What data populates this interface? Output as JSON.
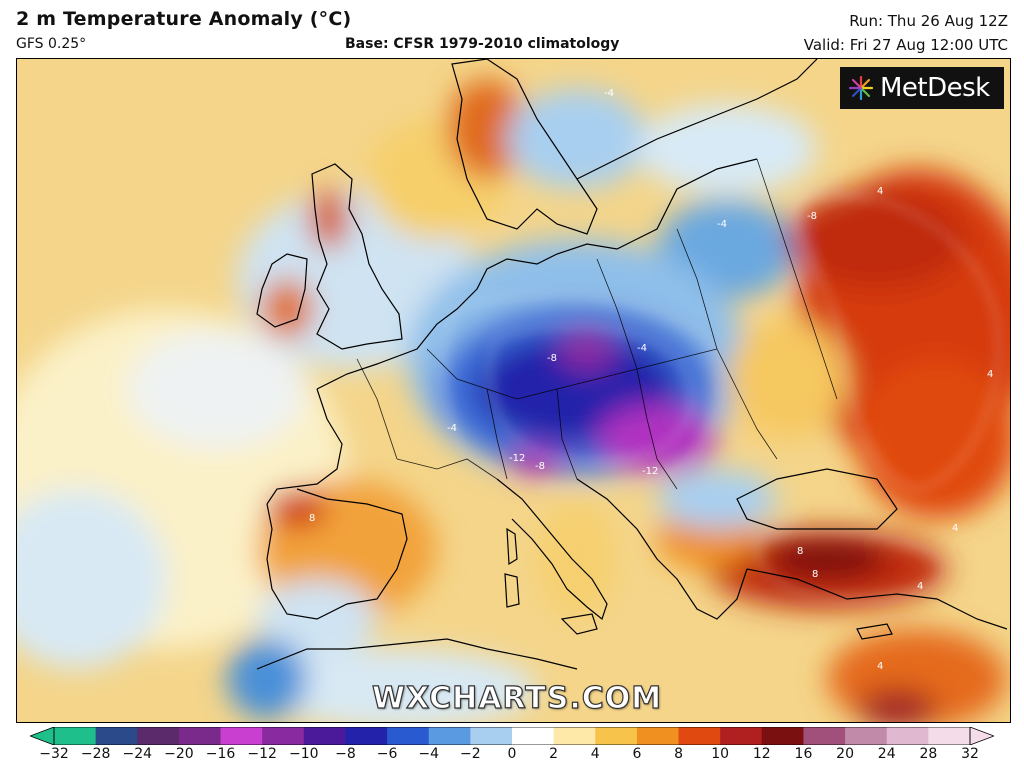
{
  "header": {
    "title": "2 m Temperature Anomaly (°C)",
    "model": "GFS 0.25°",
    "base": "Base: CFSR 1979-2010 climatology",
    "run": "Run: Thu 26 Aug 12Z",
    "valid": "Valid: Fri 27 Aug 12:00 UTC"
  },
  "logo": {
    "text": "MetDesk"
  },
  "watermark": "WXCHARTS.COM",
  "colorbar": {
    "ticks": [
      "−32",
      "−28",
      "−24",
      "−20",
      "−16",
      "−12",
      "−10",
      "−8",
      "−6",
      "−4",
      "−2",
      "0",
      "2",
      "4",
      "6",
      "8",
      "10",
      "12",
      "16",
      "20",
      "24",
      "28",
      "32"
    ],
    "colors": [
      "#1fbf8c",
      "#2a4a8a",
      "#5a2a6a",
      "#7a2a8a",
      "#c93fd0",
      "#8a2aa0",
      "#4a1a9a",
      "#2222aa",
      "#2a5ad0",
      "#5a9ae0",
      "#a8cff0",
      "#ffffff",
      "#ffe9a8",
      "#f7c34a",
      "#f09020",
      "#e04a10",
      "#b02020",
      "#7a1010",
      "#a0507a",
      "#c08aa8",
      "#e0b8d0",
      "#f4dce8"
    ]
  },
  "map": {
    "contour_labels": [
      "-4",
      "-8",
      "-4",
      "-8",
      "-12",
      "-12",
      "-4",
      "-8",
      "4",
      "4",
      "4",
      "8",
      "4",
      "8",
      "8",
      "4",
      "-4"
    ]
  }
}
